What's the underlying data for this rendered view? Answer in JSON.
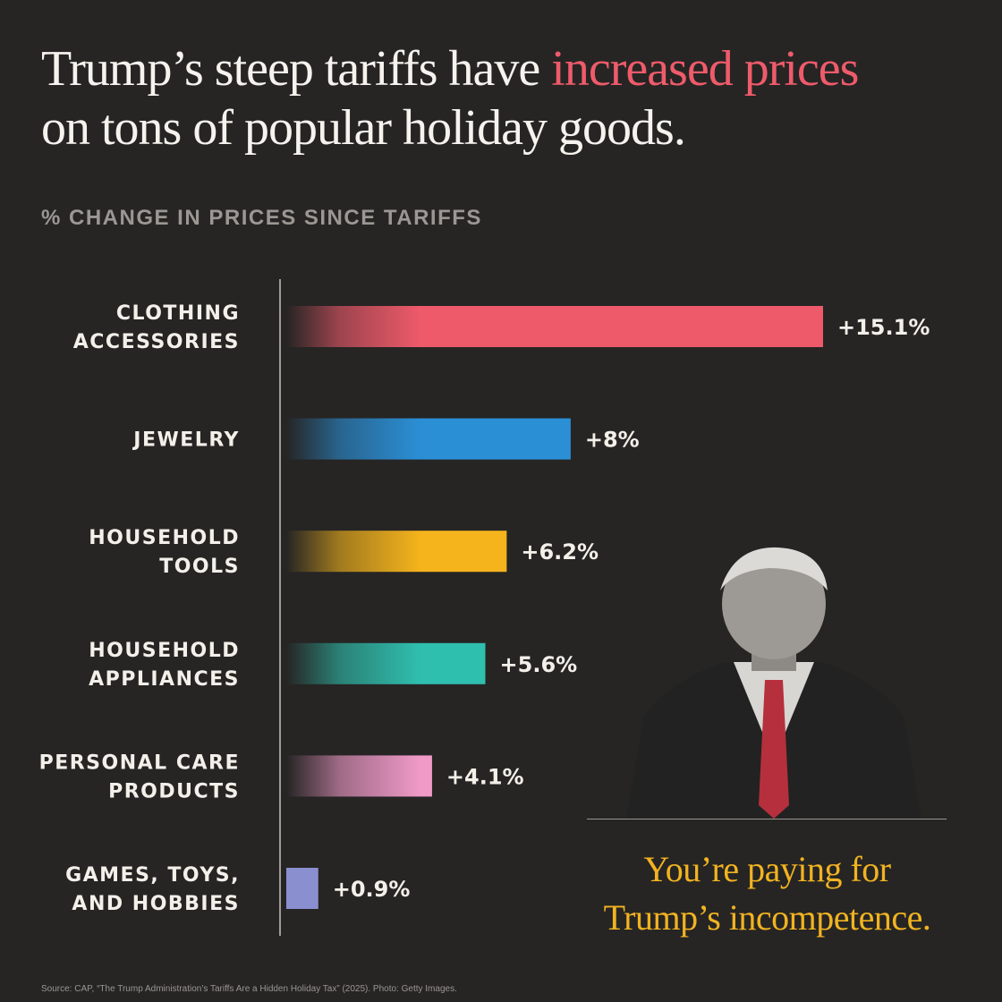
{
  "title": {
    "part1": "Trump’s steep tariffs have ",
    "highlight": "increased prices",
    "part2": "on tons of popular holiday goods."
  },
  "colors": {
    "background": "#262524",
    "highlight": "#ef5b6b",
    "caption": "#f2b321"
  },
  "chart_data": {
    "type": "bar",
    "orientation": "horizontal",
    "title": "% CHANGE IN PRICES SINCE TARIFFS",
    "categories": [
      [
        "CLOTHING",
        "ACCESSORIES"
      ],
      [
        "JEWELRY"
      ],
      [
        "HOUSEHOLD",
        "TOOLS"
      ],
      [
        "HOUSEHOLD",
        "APPLIANCES"
      ],
      [
        "PERSONAL CARE",
        "PRODUCTS"
      ],
      [
        "GAMES, TOYS,",
        "AND HOBBIES"
      ]
    ],
    "values": [
      15.1,
      8,
      6.2,
      5.6,
      4.1,
      0.9
    ],
    "labels": [
      "+15.1%",
      "+8%",
      "+6.2%",
      "+5.6%",
      "+4.1%",
      "+0.9%"
    ],
    "colors": [
      "#ee5a6a",
      "#2b8fd6",
      "#f5b41c",
      "#2fbfae",
      "#f09ac8",
      "#8a8fd0"
    ],
    "xlim": [
      0,
      15.1
    ],
    "grid": false
  },
  "photo": {
    "icon": "trump-portrait-photo"
  },
  "caption": {
    "line1": "You’re paying for",
    "line2": "Trump’s incompetence."
  },
  "source": "Source: CAP, “The Trump Administration’s Tariffs Are a Hidden Holiday Tax” (2025). Photo: Getty Images."
}
